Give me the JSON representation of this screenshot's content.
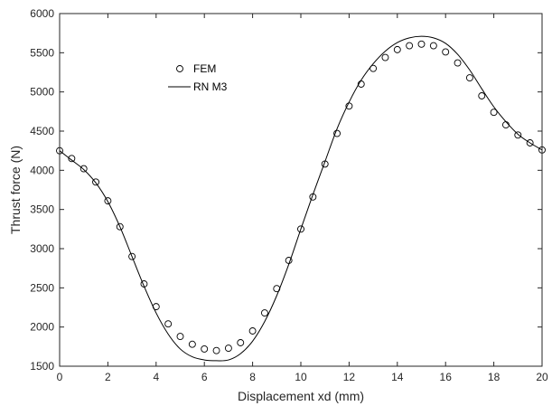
{
  "chart_data": {
    "type": "line",
    "xlabel": "Displacement xd (mm)",
    "ylabel": "Thrust force (N)",
    "xlim": [
      0,
      20
    ],
    "ylim": [
      1500,
      6000
    ],
    "xticks": [
      0,
      2,
      4,
      6,
      8,
      10,
      12,
      14,
      16,
      18,
      20
    ],
    "yticks": [
      1500,
      2000,
      2500,
      3000,
      3500,
      4000,
      4500,
      5000,
      5500,
      6000
    ],
    "grid": false,
    "legend_position": "upper-left",
    "series": [
      {
        "name": "FEM",
        "style": "markers",
        "marker": "circle",
        "color": "#000000",
        "x": [
          0,
          0.5,
          1,
          1.5,
          2,
          2.5,
          3,
          3.5,
          4,
          4.5,
          5,
          5.5,
          6,
          6.5,
          7,
          7.5,
          8,
          8.5,
          9,
          9.5,
          10,
          10.5,
          11,
          11.5,
          12,
          12.5,
          13,
          13.5,
          14,
          14.5,
          15,
          15.5,
          16,
          16.5,
          17,
          17.5,
          18,
          18.5,
          19,
          19.5,
          20
        ],
        "y": [
          4250,
          4150,
          4020,
          3850,
          3610,
          3280,
          2900,
          2550,
          2260,
          2040,
          1880,
          1780,
          1720,
          1700,
          1730,
          1800,
          1950,
          2180,
          2490,
          2850,
          3250,
          3660,
          4080,
          4470,
          4820,
          5100,
          5300,
          5440,
          5540,
          5590,
          5610,
          5590,
          5510,
          5370,
          5180,
          4950,
          4740,
          4580,
          4450,
          4350,
          4260
        ]
      },
      {
        "name": "RN M3",
        "style": "line",
        "color": "#000000",
        "x": [
          0,
          0.5,
          1,
          1.5,
          2,
          2.5,
          3,
          3.5,
          4,
          4.5,
          5,
          5.5,
          6,
          6.5,
          7,
          7.5,
          8,
          8.5,
          9,
          9.5,
          10,
          10.5,
          11,
          11.5,
          12,
          12.5,
          13,
          13.5,
          14,
          14.5,
          15,
          15.5,
          16,
          16.5,
          17,
          17.5,
          18,
          18.5,
          19,
          19.5,
          20
        ],
        "y": [
          4250,
          4130,
          4010,
          3840,
          3600,
          3280,
          2900,
          2520,
          2180,
          1910,
          1720,
          1620,
          1580,
          1570,
          1580,
          1660,
          1820,
          2070,
          2400,
          2800,
          3250,
          3690,
          4110,
          4530,
          4870,
          5150,
          5360,
          5520,
          5630,
          5690,
          5710,
          5690,
          5620,
          5480,
          5280,
          5040,
          4810,
          4620,
          4460,
          4350,
          4260
        ]
      }
    ]
  }
}
